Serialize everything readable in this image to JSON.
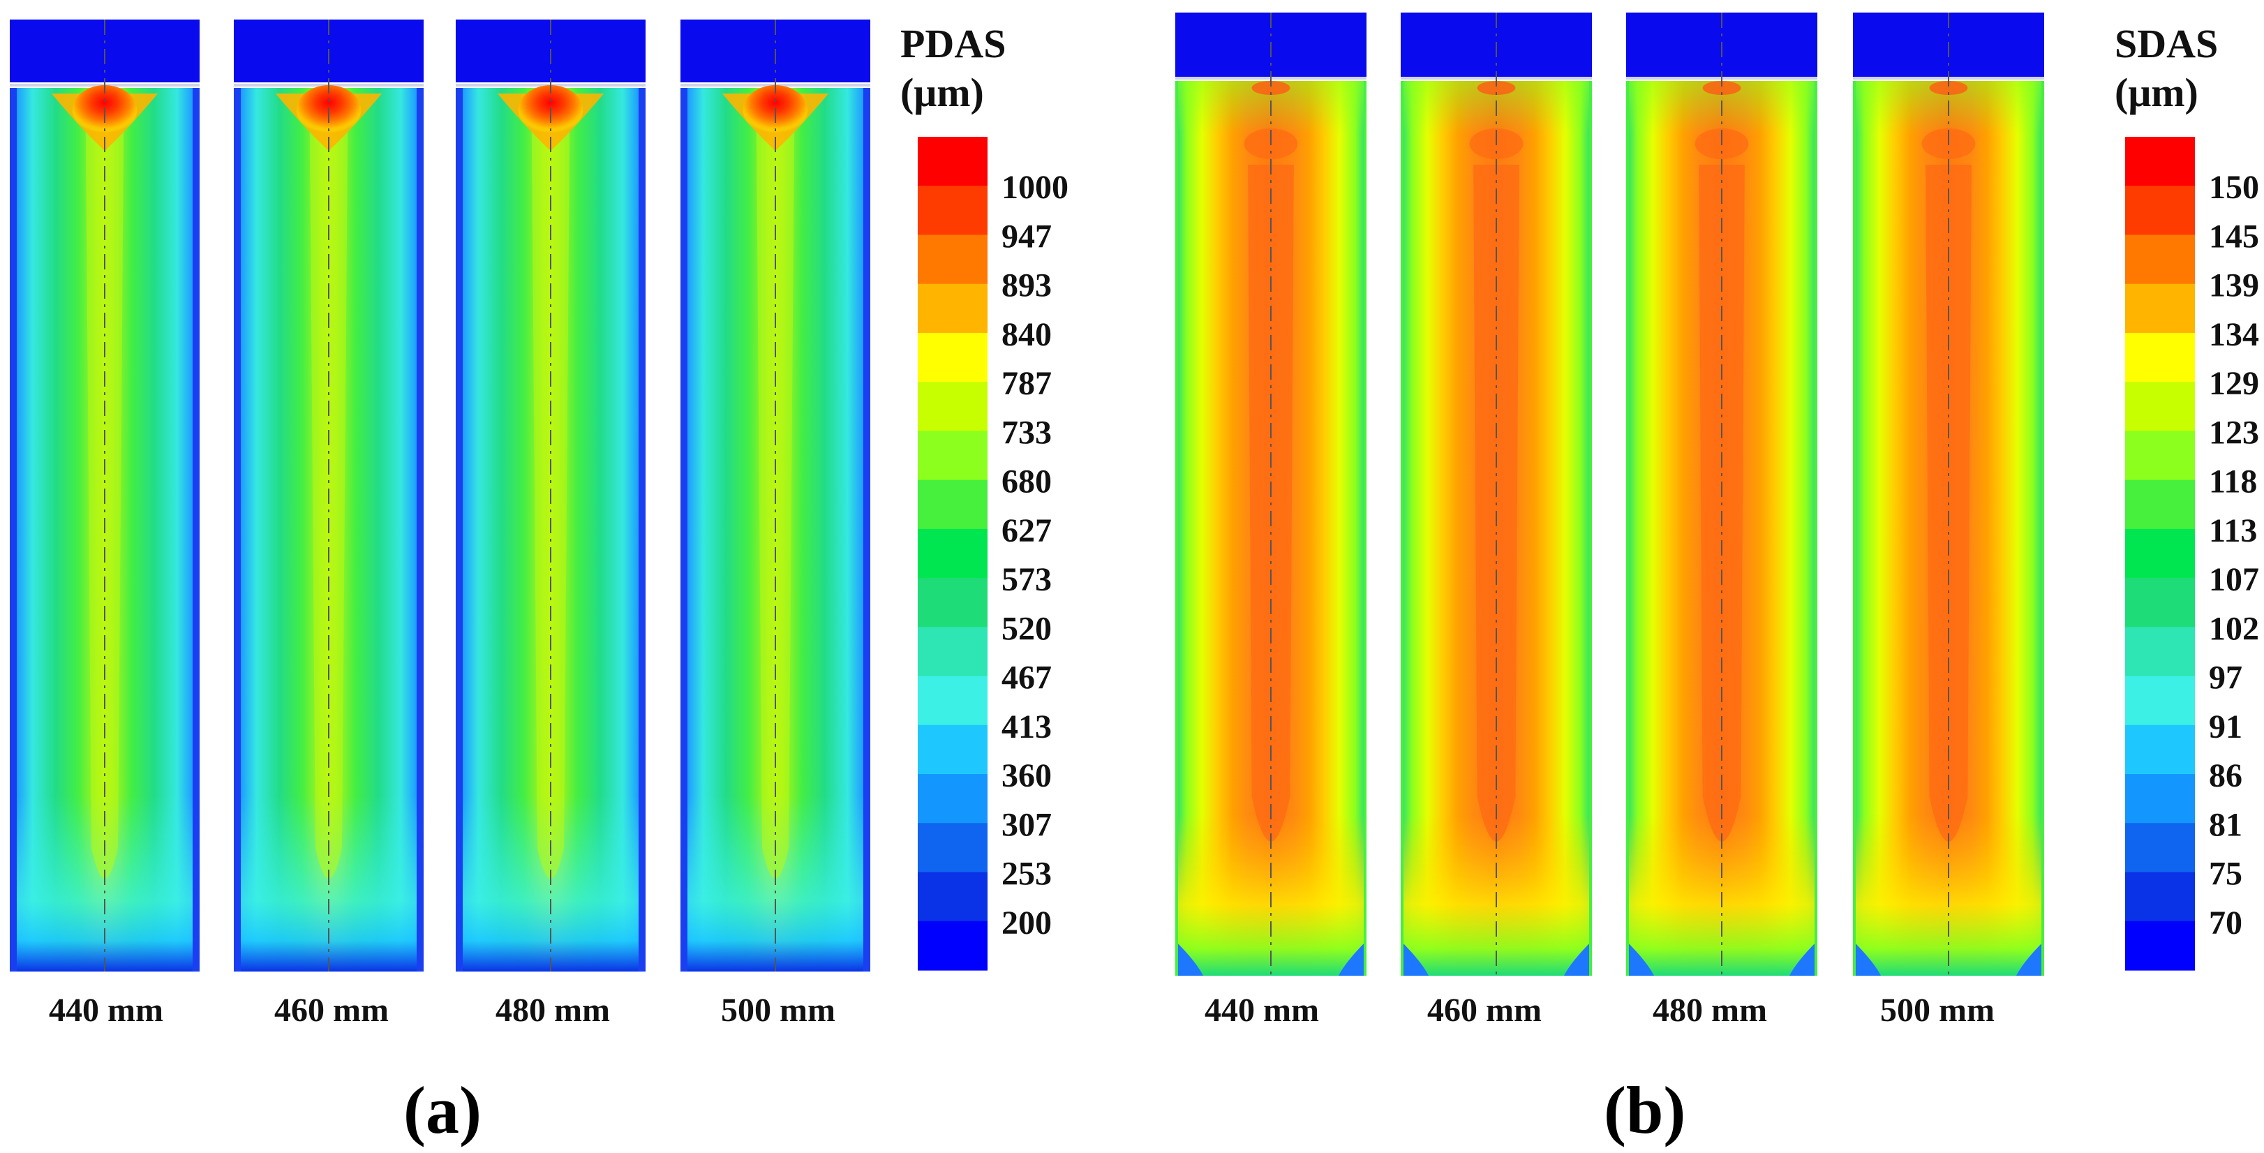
{
  "chart_data": [
    {
      "type": "heatmap",
      "panel_label": "(a)",
      "colorbar_title": [
        "PDAS",
        "(μm)"
      ],
      "colorbar_ticks": [
        "1000",
        "947",
        "893",
        "840",
        "787",
        "733",
        "680",
        "627",
        "573",
        "520",
        "467",
        "413",
        "360",
        "307",
        "253",
        "200"
      ],
      "colorbar_range": [
        200,
        1000
      ],
      "colorbar_colors": [
        "#ff0000",
        "#ff3c00",
        "#ff7800",
        "#ffb400",
        "#ffff00",
        "#c8ff00",
        "#8cff1e",
        "#46f03c",
        "#00e650",
        "#1edc78",
        "#2de6b4",
        "#3cf0e6",
        "#1ec8ff",
        "#1496ff",
        "#0f64f0",
        "#0a32e6",
        "#0000ff"
      ],
      "samples": [
        {
          "caption": "440 mm",
          "center_value": 760,
          "top_hot_value": 1000,
          "edge_value": 400
        },
        {
          "caption": "460 mm",
          "center_value": 750,
          "top_hot_value": 1000,
          "edge_value": 395
        },
        {
          "caption": "480 mm",
          "center_value": 740,
          "top_hot_value": 1000,
          "edge_value": 390
        },
        {
          "caption": "500 mm",
          "center_value": 735,
          "top_hot_value": 1000,
          "edge_value": 385
        }
      ]
    },
    {
      "type": "heatmap",
      "panel_label": "(b)",
      "colorbar_title": [
        "SDAS",
        "(μm)"
      ],
      "colorbar_ticks": [
        "150",
        "145",
        "139",
        "134",
        "129",
        "123",
        "118",
        "113",
        "107",
        "102",
        "97",
        "91",
        "86",
        "81",
        "75",
        "70"
      ],
      "colorbar_range": [
        70,
        150
      ],
      "colorbar_colors": [
        "#ff0000",
        "#ff3c00",
        "#ff7800",
        "#ffb400",
        "#ffff00",
        "#c8ff00",
        "#8cff1e",
        "#46f03c",
        "#00e650",
        "#1edc78",
        "#2de6b4",
        "#3cf0e6",
        "#1ec8ff",
        "#1496ff",
        "#0f64f0",
        "#0a32e6",
        "#0000ff"
      ],
      "samples": [
        {
          "caption": "440 mm",
          "center_value": 141,
          "edge_value": 118
        },
        {
          "caption": "460 mm",
          "center_value": 142,
          "edge_value": 118
        },
        {
          "caption": "480 mm",
          "center_value": 142,
          "edge_value": 118
        },
        {
          "caption": "500 mm",
          "center_value": 143,
          "edge_value": 118
        }
      ]
    }
  ]
}
